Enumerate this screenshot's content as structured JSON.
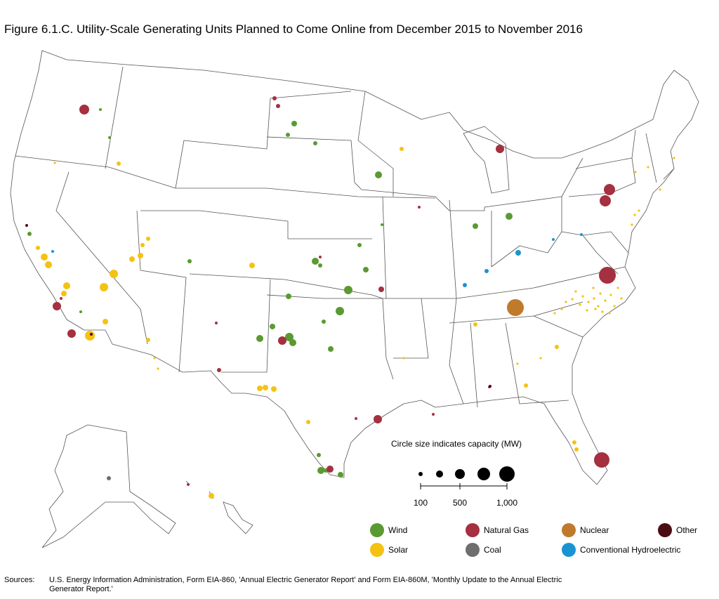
{
  "title": "Figure 6.1.C. Utility-Scale Generating Units Planned to Come Online from December 2015 to November 2016",
  "size_legend": {
    "title": "Circle size indicates capacity (MW)",
    "ticks": [
      "100",
      "500",
      "1,000"
    ]
  },
  "legend": [
    {
      "label": "Wind",
      "color": "#5a9a32"
    },
    {
      "label": "Natural Gas",
      "color": "#a5303f"
    },
    {
      "label": "Nuclear",
      "color": "#c07a2c"
    },
    {
      "label": "Other",
      "color": "#4a0d12"
    },
    {
      "label": "Solar",
      "color": "#f5c211"
    },
    {
      "label": "Coal",
      "color": "#6e6e6e"
    },
    {
      "label": "Conventional Hydroelectric",
      "color": "#1a93d1"
    }
  ],
  "sources_label": "Sources:",
  "sources_text": "U.S. Energy Information Administration, Form EIA-860, 'Annual Electric Generator Report' and Form EIA-860M, 'Monthly Update to the Annual Electric Generator Report.'",
  "colors": {
    "outline": "#555555"
  }
}
